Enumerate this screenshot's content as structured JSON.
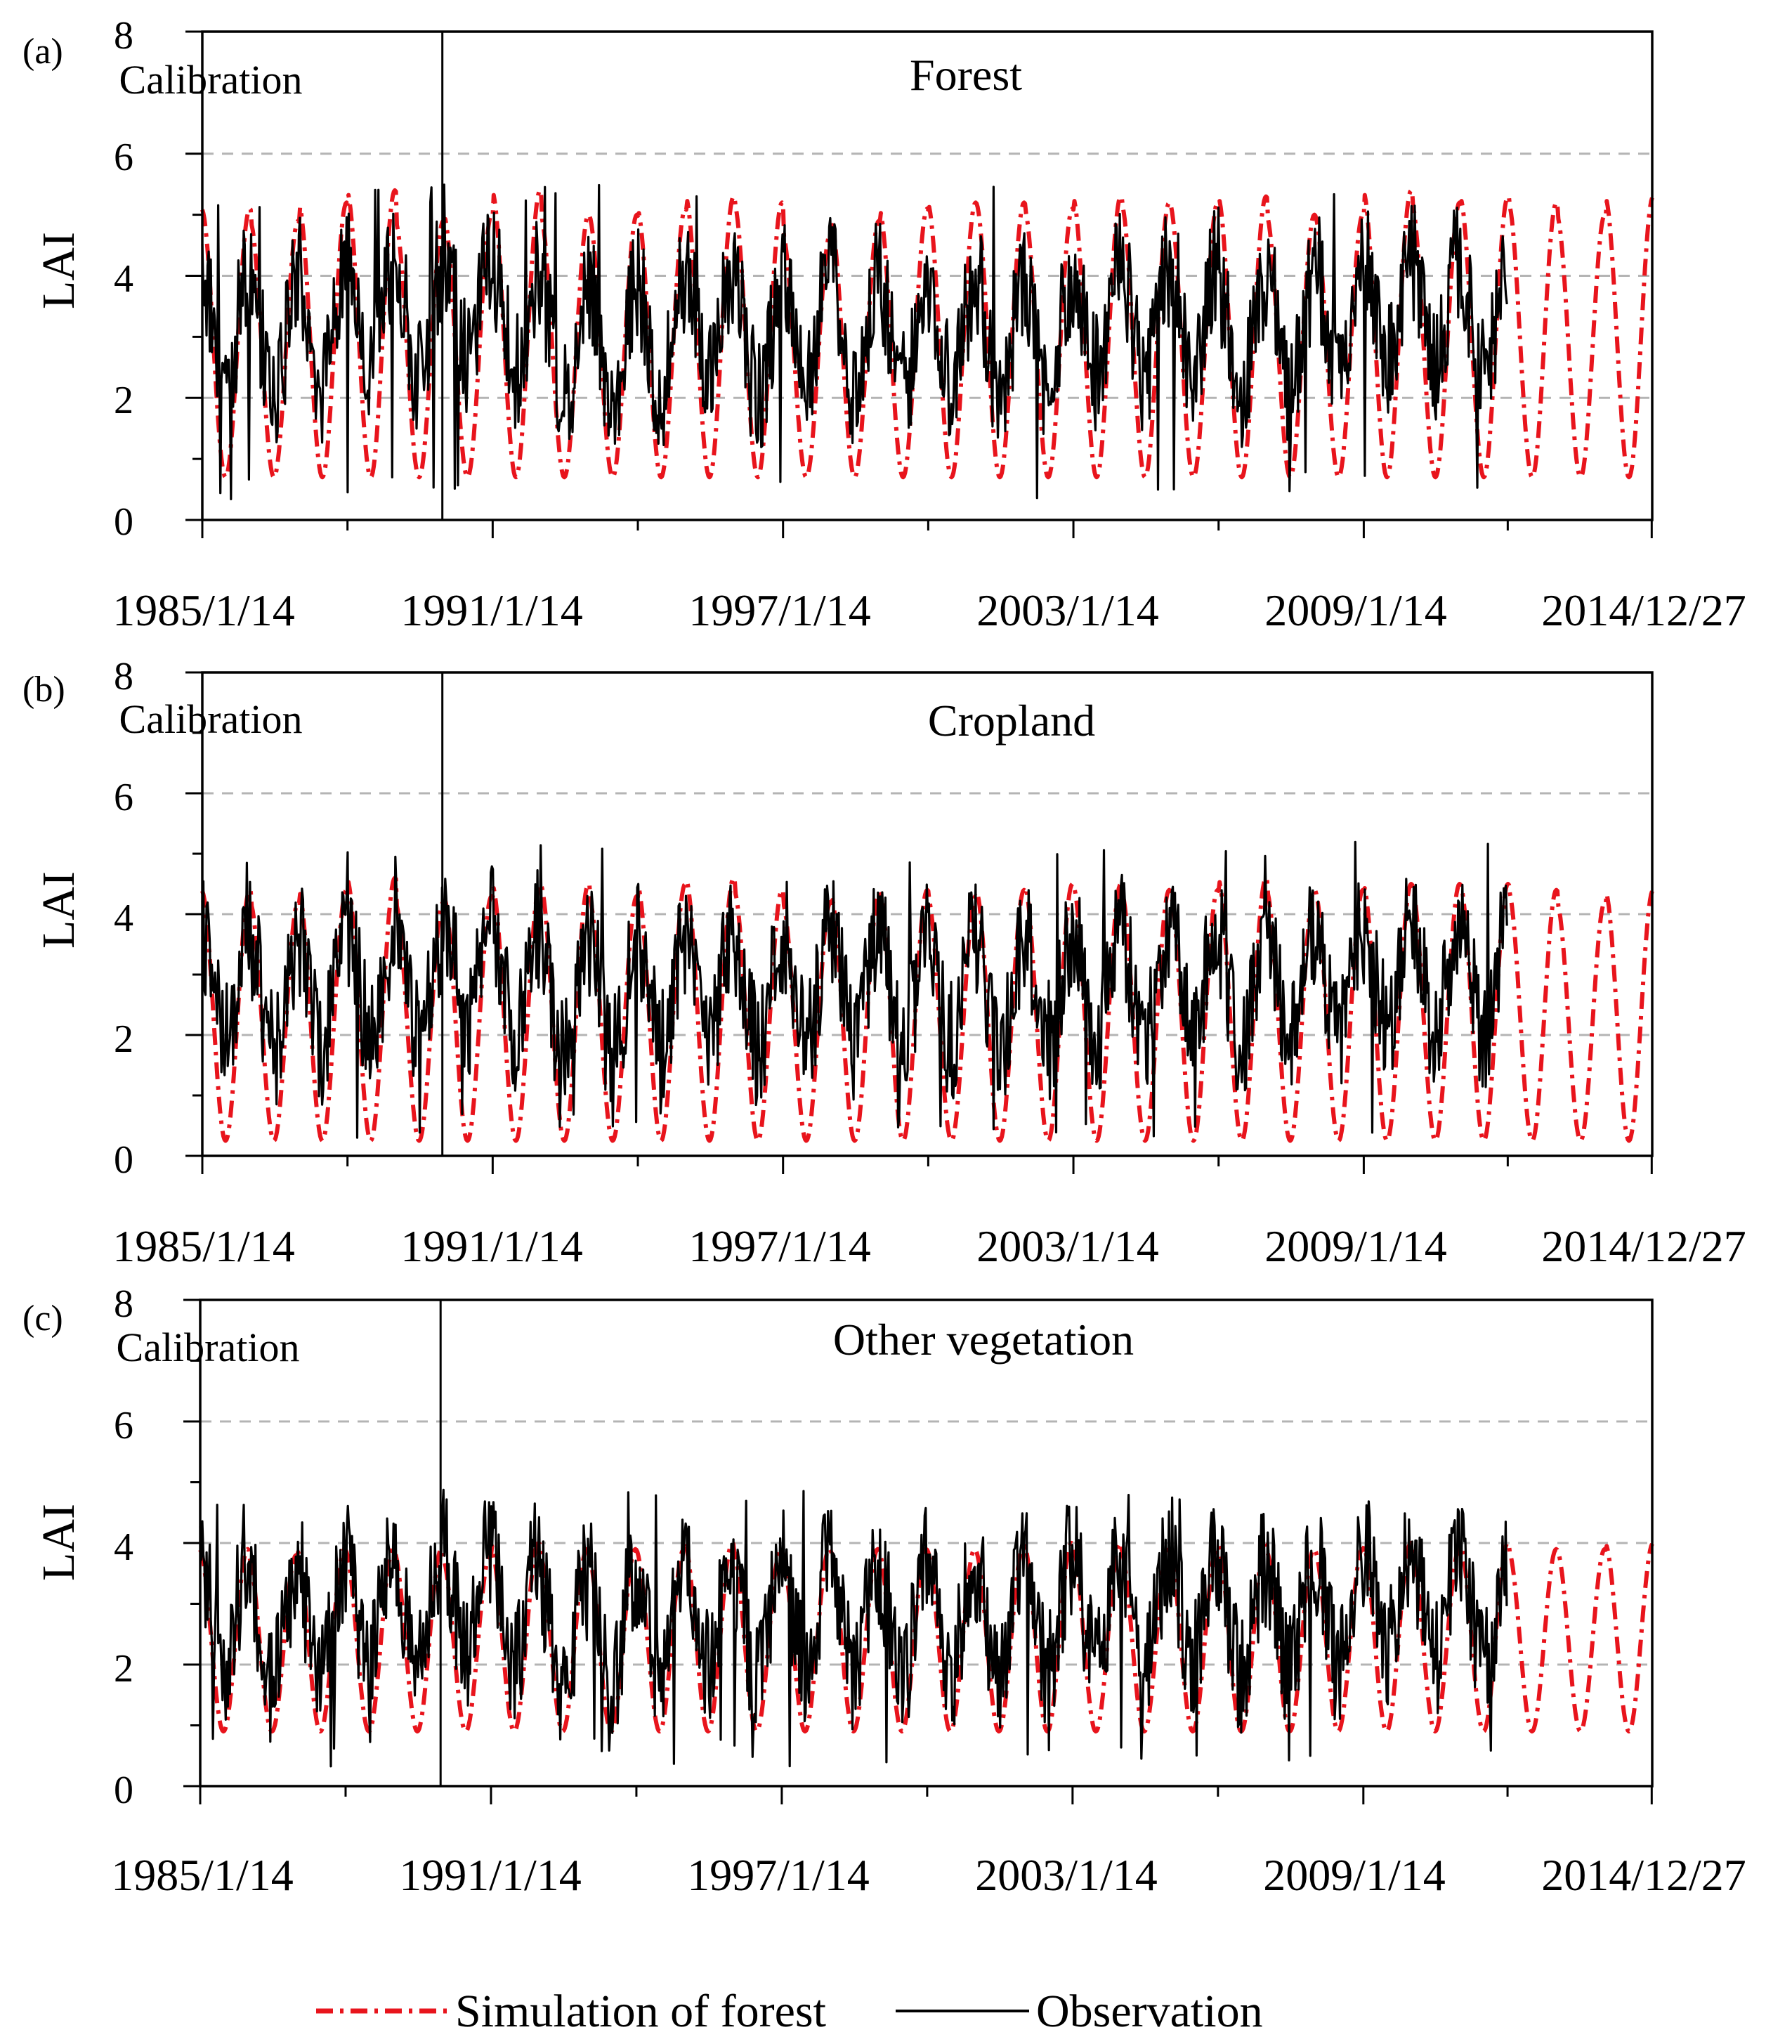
{
  "figure": {
    "legend": {
      "simulation_label": "Simulation of forest",
      "observation_label": "Observation",
      "simulation_color": "#e8141c",
      "observation_color": "#000000",
      "placement": "bottom-center"
    }
  },
  "chart_data": [
    {
      "type": "line",
      "panel_label": "(a)",
      "title": "Forest",
      "region_label": "Calibration",
      "ylabel": "LAI",
      "xlabel": "",
      "ylim": [
        0,
        8
      ],
      "yticks": [
        "0",
        "2",
        "4",
        "6",
        "8"
      ],
      "gridlines_y": [
        2,
        4,
        6
      ],
      "grid": "dashed-horizontal",
      "xlim": [
        1985.04,
        2015.0
      ],
      "xtick_labels": [
        "1985/1/14",
        "1991/1/14",
        "1997/1/14",
        "2003/1/14",
        "2009/1/14",
        "2014/12/27"
      ],
      "xtick_years": [
        1985.04,
        1991.04,
        1997.04,
        2003.04,
        2009.04,
        2014.99
      ],
      "calibration_end_year": 1990.0,
      "series": [
        {
          "name": "Simulation of forest",
          "style": "dash-dot",
          "color": "#e8141c",
          "start": 1985.04,
          "end": 2015.0,
          "min": 0.7,
          "peaks": [
            5.1,
            4.9,
            5.2,
            5.4,
            4.9,
            5.0,
            5.4,
            5.0,
            5.0,
            5.1,
            5.3,
            5.2,
            4.7,
            4.9,
            5.1,
            5.2,
            5.2,
            5.1,
            5.3,
            5.2,
            5.2,
            5.3,
            5.0,
            5.0,
            5.4,
            5.2,
            5.3,
            5.2,
            5.0,
            5.3
          ]
        },
        {
          "name": "Observation",
          "style": "solid",
          "color": "#000000",
          "start": 1985.04,
          "end": 2012.0,
          "min_value": 0.3,
          "max_value": 5.5,
          "annual_means": [
            3.2,
            3.0,
            3.1,
            3.4,
            3.3,
            3.5,
            3.3,
            2.8,
            2.9,
            3.0,
            3.2,
            2.9,
            3.2,
            3.1,
            3.0,
            3.1,
            3.0,
            3.1,
            3.3,
            3.2,
            3.4,
            3.0,
            3.1,
            3.3,
            3.5,
            3.4,
            3.3
          ]
        }
      ]
    },
    {
      "type": "line",
      "panel_label": "(b)",
      "title": "Cropland",
      "region_label": "Calibration",
      "ylabel": "LAI",
      "xlabel": "",
      "ylim": [
        0,
        8
      ],
      "yticks": [
        "0",
        "2",
        "4",
        "6",
        "8"
      ],
      "gridlines_y": [
        2,
        4,
        6
      ],
      "grid": "dashed-horizontal",
      "xlim": [
        1985.04,
        2015.0
      ],
      "xtick_labels": [
        "1985/1/14",
        "1991/1/14",
        "1997/1/14",
        "2003/1/14",
        "2009/1/14",
        "2014/12/27"
      ],
      "xtick_years": [
        1985.04,
        1991.04,
        1997.04,
        2003.04,
        2009.04,
        2014.99
      ],
      "calibration_end_year": 1990.0,
      "series": [
        {
          "name": "Simulation of forest",
          "style": "dash-dot",
          "color": "#e8141c",
          "start": 1985.04,
          "end": 2015.0,
          "min": 0.25,
          "peaks": [
            4.4,
            4.2,
            4.4,
            4.6,
            4.2,
            4.3,
            4.5,
            4.5,
            4.3,
            4.5,
            4.6,
            4.4,
            4.2,
            4.3,
            4.4,
            4.3,
            4.4,
            4.5,
            4.5,
            4.4,
            4.4,
            4.6,
            4.4,
            4.4,
            4.5,
            4.5,
            4.5,
            4.4,
            4.2,
            4.4
          ]
        },
        {
          "name": "Observation",
          "style": "solid",
          "color": "#000000",
          "start": 1985.04,
          "end": 2012.0,
          "min_value": 0.3,
          "max_value": 5.2,
          "annual_means": [
            2.8,
            2.6,
            2.7,
            2.9,
            2.8,
            3.1,
            2.9,
            2.5,
            2.6,
            2.7,
            2.9,
            2.7,
            2.8,
            2.8,
            2.7,
            2.8,
            2.7,
            2.8,
            2.9,
            2.8,
            3.0,
            2.7,
            2.8,
            2.9,
            3.1,
            3.0,
            2.9
          ]
        }
      ]
    },
    {
      "type": "line",
      "panel_label": "(c)",
      "title": "Other vegetation",
      "region_label": "Calibration",
      "ylabel": "LAI",
      "xlabel": "",
      "ylim": [
        0,
        8
      ],
      "yticks": [
        "0",
        "2",
        "4",
        "6",
        "8"
      ],
      "gridlines_y": [
        2,
        4,
        6
      ],
      "grid": "dashed-horizontal",
      "xlim": [
        1985.04,
        2015.0
      ],
      "xtick_labels": [
        "1985/1/14",
        "1991/1/14",
        "1997/1/14",
        "2003/1/14",
        "2009/1/14",
        "2014/12/27"
      ],
      "xtick_years": [
        1985.04,
        1991.04,
        1997.04,
        2003.04,
        2009.04,
        2014.99
      ],
      "calibration_end_year": 1990.0,
      "series": [
        {
          "name": "Simulation of forest",
          "style": "dash-dot",
          "color": "#e8141c",
          "start": 1985.04,
          "end": 2015.0,
          "min": 0.9,
          "peaks": [
            3.9,
            3.8,
            3.9,
            3.9,
            3.9,
            3.8,
            4.0,
            3.9,
            3.9,
            3.9,
            4.0,
            3.9,
            3.9,
            3.9,
            3.9,
            3.9,
            3.9,
            4.0,
            4.0,
            3.9,
            3.9,
            4.0,
            3.9,
            3.9,
            4.0,
            3.9,
            4.0,
            3.9,
            3.9,
            4.0
          ]
        },
        {
          "name": "Observation",
          "style": "solid",
          "color": "#000000",
          "start": 1985.04,
          "end": 2012.0,
          "min_value": 0.3,
          "max_value": 5.0,
          "annual_means": [
            2.8,
            2.6,
            2.7,
            2.9,
            2.8,
            3.1,
            2.9,
            2.5,
            2.6,
            2.7,
            2.9,
            2.7,
            2.8,
            2.8,
            2.7,
            2.8,
            2.7,
            2.8,
            2.9,
            2.8,
            3.0,
            2.7,
            2.8,
            2.9,
            3.1,
            3.0,
            2.9
          ]
        }
      ]
    }
  ]
}
